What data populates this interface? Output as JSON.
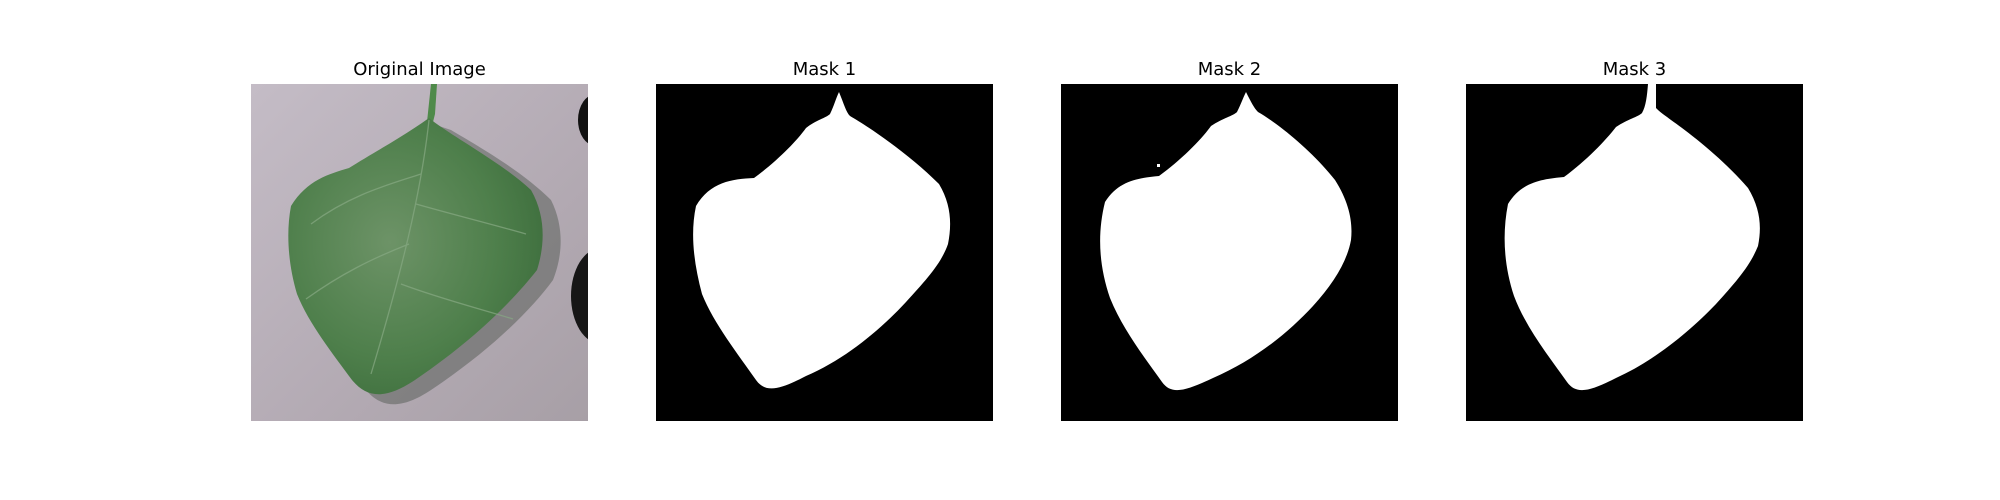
{
  "panels": [
    {
      "title": "Original Image"
    },
    {
      "title": "Mask 1"
    },
    {
      "title": "Mask 2"
    },
    {
      "title": "Mask 3"
    }
  ],
  "colors": {
    "mask_background": "#000000",
    "mask_foreground": "#ffffff",
    "leaf": "#4a7a45",
    "surface": "#b9b1b8"
  }
}
